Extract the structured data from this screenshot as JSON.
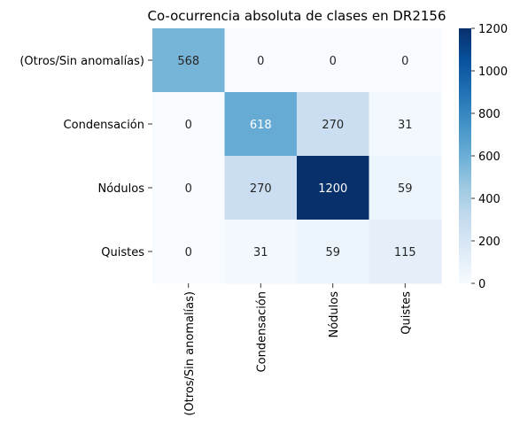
{
  "chart_data": {
    "type": "heatmap",
    "title": "Co-ocurrencia absoluta de clases en DR2156",
    "xlabel": "",
    "ylabel": "",
    "rows": [
      "(Otros/Sin anomalías)",
      "Condensación",
      "Nódulos",
      "Quistes"
    ],
    "columns": [
      "(Otros/Sin anomalías)",
      "Condensación",
      "Nódulos",
      "Quistes"
    ],
    "values": [
      [
        568,
        0,
        0,
        0
      ],
      [
        0,
        618,
        270,
        31
      ],
      [
        0,
        270,
        1200,
        59
      ],
      [
        0,
        31,
        59,
        115
      ]
    ],
    "colorbar": {
      "range": [
        0,
        1200
      ],
      "ticks": [
        "0",
        "200",
        "400",
        "600",
        "800",
        "1000",
        "1200"
      ],
      "colormap": "Blues"
    },
    "grid": false,
    "legend": "colorbar-right"
  }
}
